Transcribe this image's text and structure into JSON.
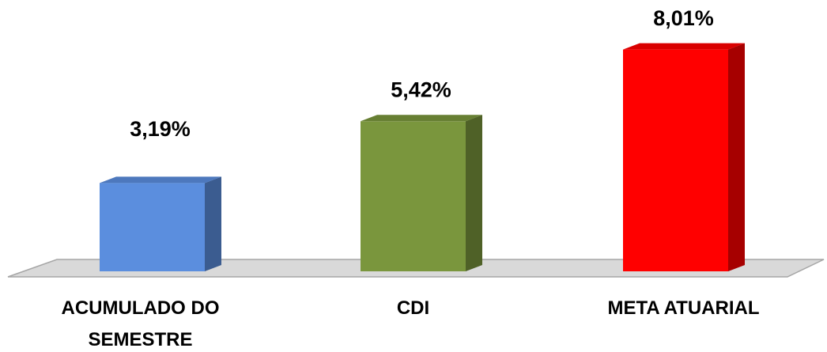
{
  "chart_data": {
    "type": "bar3d",
    "categories": [
      "ACUMULADO DO SEMESTRE",
      "CDI",
      "META ATUARIAL"
    ],
    "values": [
      3.19,
      5.42,
      8.01
    ],
    "value_labels": [
      "3,19%",
      "5,42%",
      "8,01%"
    ],
    "colors": [
      "#5b8ede",
      "#7a963d",
      "#ff0000"
    ]
  }
}
